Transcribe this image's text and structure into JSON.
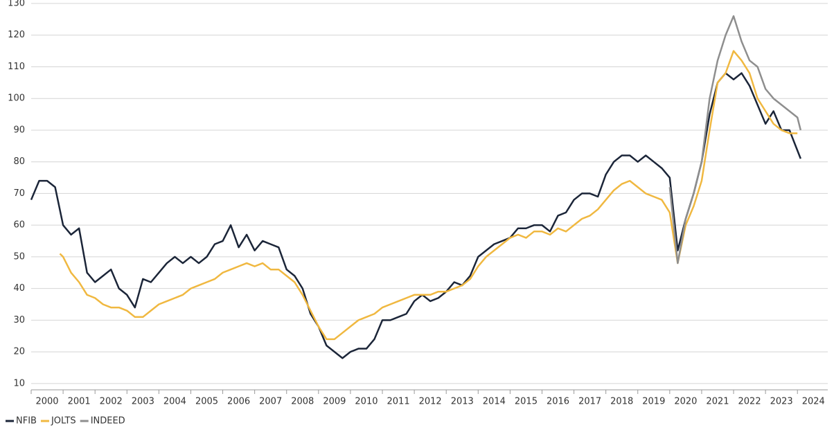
{
  "chart_data": {
    "type": "line",
    "xlim": [
      2000,
      2024.95
    ],
    "ylim": [
      8,
      130
    ],
    "yticks": [
      10,
      20,
      30,
      40,
      50,
      60,
      70,
      80,
      90,
      100,
      110,
      120,
      130
    ],
    "xticks": [
      2000,
      2001,
      2002,
      2003,
      2004,
      2005,
      2006,
      2007,
      2008,
      2009,
      2010,
      2011,
      2012,
      2013,
      2014,
      2015,
      2016,
      2017,
      2018,
      2019,
      2020,
      2021,
      2022,
      2023,
      2024
    ],
    "grid": true,
    "legend": "bottom-left",
    "series": [
      {
        "name": "NFIB",
        "color": "#1b2538",
        "x": [
          2000,
          2000.25,
          2000.5,
          2000.75,
          2001,
          2001.25,
          2001.5,
          2001.75,
          2002,
          2002.25,
          2002.5,
          2002.75,
          2003,
          2003.25,
          2003.5,
          2003.75,
          2004,
          2004.25,
          2004.5,
          2004.75,
          2005,
          2005.25,
          2005.5,
          2005.75,
          2006,
          2006.25,
          2006.5,
          2006.75,
          2007,
          2007.25,
          2007.5,
          2007.75,
          2008,
          2008.25,
          2008.5,
          2008.75,
          2009,
          2009.25,
          2009.5,
          2009.75,
          2010,
          2010.25,
          2010.5,
          2010.75,
          2011,
          2011.25,
          2011.5,
          2011.75,
          2012,
          2012.25,
          2012.5,
          2012.75,
          2013,
          2013.25,
          2013.5,
          2013.75,
          2014,
          2014.25,
          2014.5,
          2014.75,
          2015,
          2015.25,
          2015.5,
          2015.75,
          2016,
          2016.25,
          2016.5,
          2016.75,
          2017,
          2017.25,
          2017.5,
          2017.75,
          2018,
          2018.25,
          2018.5,
          2018.75,
          2019,
          2019.25,
          2019.5,
          2019.75,
          2020,
          2020.25,
          2020.5,
          2020.75,
          2021,
          2021.25,
          2021.5,
          2021.75,
          2022,
          2022.25,
          2022.5,
          2022.75,
          2023,
          2023.25,
          2023.5,
          2023.75,
          2024.1
        ],
        "values": [
          68,
          74,
          74,
          72,
          60,
          57,
          59,
          45,
          42,
          44,
          46,
          40,
          38,
          34,
          43,
          42,
          45,
          48,
          50,
          48,
          50,
          48,
          50,
          54,
          55,
          60,
          53,
          57,
          52,
          55,
          54,
          53,
          46,
          44,
          40,
          32,
          28,
          22,
          20,
          18,
          20,
          21,
          21,
          24,
          30,
          30,
          31,
          32,
          36,
          38,
          36,
          37,
          39,
          42,
          41,
          44,
          50,
          52,
          54,
          55,
          56,
          59,
          59,
          60,
          60,
          58,
          63,
          64,
          68,
          70,
          70,
          69,
          76,
          80,
          82,
          82,
          80,
          82,
          80,
          78,
          75,
          52,
          62,
          70,
          80,
          95,
          105,
          108,
          106,
          108,
          104,
          98,
          92,
          96,
          90,
          90,
          81
        ]
      },
      {
        "name": "JOLTS",
        "color": "#f0b840",
        "x": [
          2000.9,
          2001,
          2001.25,
          2001.5,
          2001.75,
          2002,
          2002.25,
          2002.5,
          2002.75,
          2003,
          2003.25,
          2003.5,
          2003.75,
          2004,
          2004.25,
          2004.5,
          2004.75,
          2005,
          2005.25,
          2005.5,
          2005.75,
          2006,
          2006.25,
          2006.5,
          2006.75,
          2007,
          2007.25,
          2007.5,
          2007.75,
          2008,
          2008.25,
          2008.5,
          2008.75,
          2009,
          2009.25,
          2009.5,
          2009.75,
          2010,
          2010.25,
          2010.5,
          2010.75,
          2011,
          2011.25,
          2011.5,
          2011.75,
          2012,
          2012.25,
          2012.5,
          2012.75,
          2013,
          2013.25,
          2013.5,
          2013.75,
          2014,
          2014.25,
          2014.5,
          2014.75,
          2015,
          2015.25,
          2015.5,
          2015.75,
          2016,
          2016.25,
          2016.5,
          2016.75,
          2017,
          2017.25,
          2017.5,
          2017.75,
          2018,
          2018.25,
          2018.5,
          2018.75,
          2019,
          2019.25,
          2019.5,
          2019.75,
          2020,
          2020.25,
          2020.5,
          2020.75,
          2021,
          2021.25,
          2021.5,
          2021.75,
          2022,
          2022.25,
          2022.5,
          2022.75,
          2023,
          2023.25,
          2023.5,
          2023.75,
          2024
        ],
        "values": [
          51,
          50,
          45,
          42,
          38,
          37,
          35,
          34,
          34,
          33,
          31,
          31,
          33,
          35,
          36,
          37,
          38,
          40,
          41,
          42,
          43,
          45,
          46,
          47,
          48,
          47,
          48,
          46,
          46,
          44,
          42,
          38,
          33,
          28,
          24,
          24,
          26,
          28,
          30,
          31,
          32,
          34,
          35,
          36,
          37,
          38,
          38,
          38,
          39,
          39,
          40,
          41,
          43,
          47,
          50,
          52,
          54,
          56,
          57,
          56,
          58,
          58,
          57,
          59,
          58,
          60,
          62,
          63,
          65,
          68,
          71,
          73,
          74,
          72,
          70,
          69,
          68,
          64,
          48,
          60,
          66,
          74,
          90,
          105,
          108,
          115,
          112,
          108,
          100,
          96,
          92,
          90,
          89,
          89
        ]
      },
      {
        "name": "INDEED",
        "color": "#8e8e8e",
        "x": [
          2020,
          2020.25,
          2020.5,
          2020.75,
          2021,
          2021.25,
          2021.5,
          2021.75,
          2022,
          2022.25,
          2022.5,
          2022.75,
          2023,
          2023.25,
          2023.5,
          2023.75,
          2024,
          2024.1
        ],
        "values": [
          72,
          48,
          62,
          70,
          80,
          100,
          112,
          120,
          126,
          118,
          112,
          110,
          103,
          100,
          98,
          96,
          94,
          90
        ]
      }
    ]
  }
}
